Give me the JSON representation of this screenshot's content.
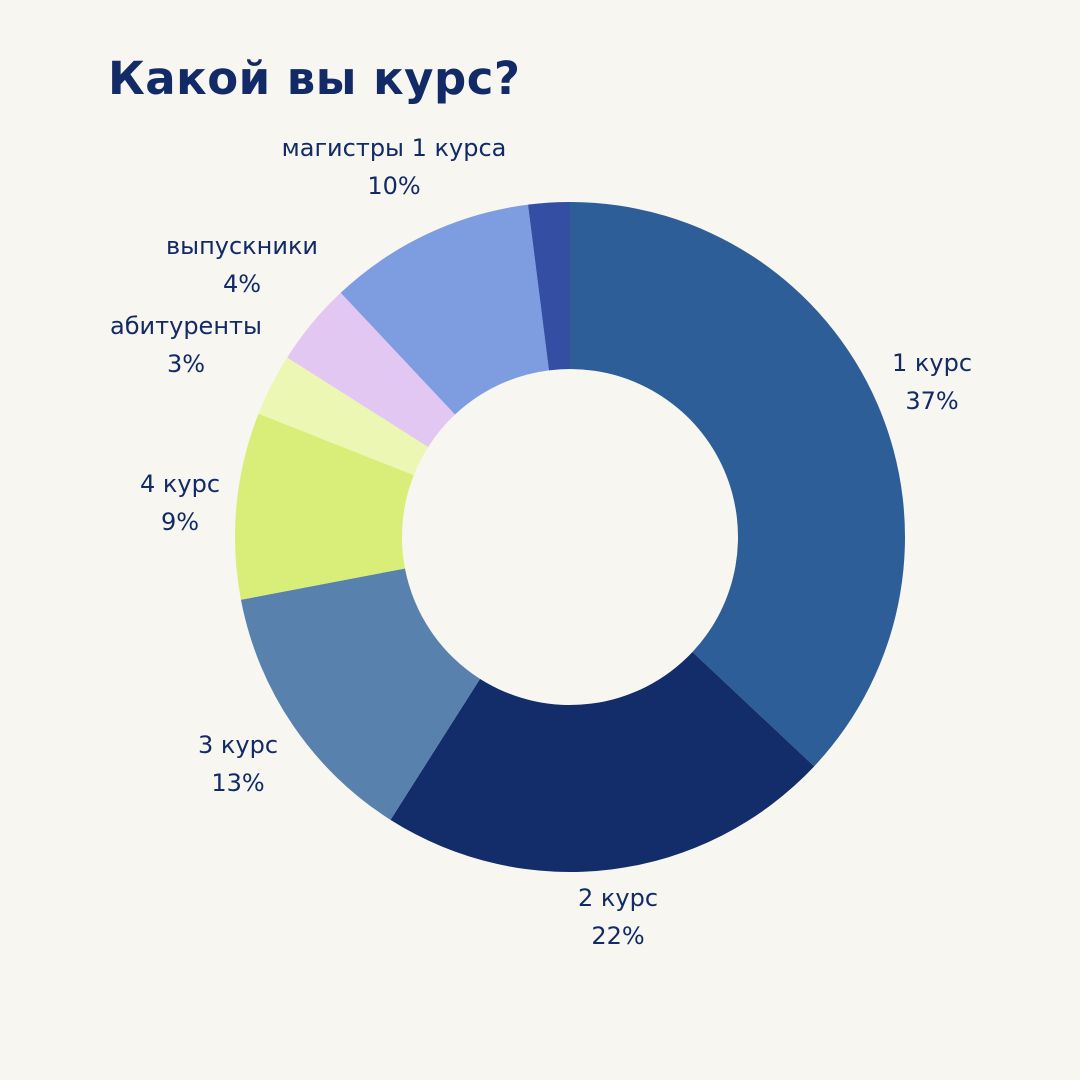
{
  "chart_data": {
    "type": "pie",
    "variant": "donut",
    "title": "Какой вы курс?",
    "slices": [
      {
        "label": "1 курс",
        "percent_label": "37%",
        "value": 37,
        "color": "#2e5e98"
      },
      {
        "label": "2 курс",
        "percent_label": "22%",
        "value": 22,
        "color": "#122d6a"
      },
      {
        "label": "3 курс",
        "percent_label": "13%",
        "value": 13,
        "color": "#5882ad"
      },
      {
        "label": "4 курс",
        "percent_label": "9%",
        "value": 9,
        "color": "#d8ee78"
      },
      {
        "label": "абитуренты",
        "percent_label": "3%",
        "value": 3,
        "color": "#ebf7b3"
      },
      {
        "label": "выпускники",
        "percent_label": "4%",
        "value": 4,
        "color": "#e2c7f2"
      },
      {
        "label": "магистры 1 курса",
        "percent_label": "10%",
        "value": 10,
        "color": "#7d9de0"
      },
      {
        "label": "",
        "percent_label": "",
        "value": 2,
        "color": "#334ea3"
      }
    ]
  }
}
